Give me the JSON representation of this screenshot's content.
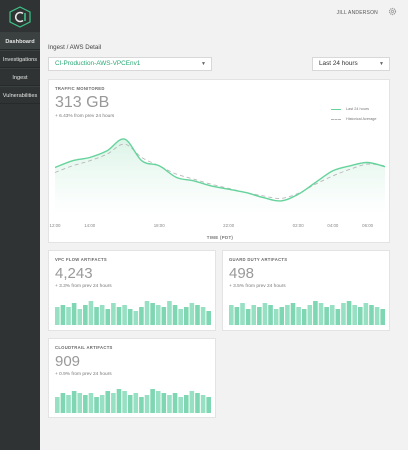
{
  "colors": {
    "accent": "#2aa876",
    "series": "#66d39c",
    "fill": "#d9f3e6",
    "bars": "#8fdcbd",
    "sidebar": "#2f3333"
  },
  "icons": {
    "logo": "ci-logo-icon",
    "settings": "gear-icon",
    "dropdown": "chevron-down-icon"
  },
  "sidebar": {
    "items": [
      {
        "label": "Dashboard",
        "active": true
      },
      {
        "label": "Investigations",
        "active": false
      },
      {
        "label": "Ingest",
        "active": false
      },
      {
        "label": "Vulnerabilities",
        "active": false
      }
    ]
  },
  "header": {
    "user": "JILL ANDERSON"
  },
  "breadcrumb": "Ingest / AWS Detail",
  "filters": {
    "account": "CI-Production-AWS-VPCEnv1",
    "range": "Last 24 hours"
  },
  "traffic": {
    "title": "TRAFFIC MONITORED",
    "value": "313 GB",
    "delta": "+ 6.43% from prev 24 hours",
    "legend": {
      "current": "Last 24 hours",
      "historical": "Historical Average"
    },
    "x_label": "TIME (PDT)",
    "chart_data": {
      "type": "area",
      "x": [
        "12:00",
        "13:00",
        "14:00",
        "15:00",
        "16:00",
        "17:00",
        "18:00",
        "19:00",
        "20:00",
        "21:00",
        "22:00",
        "23:00",
        "00:00",
        "01:00",
        "02:00",
        "03:00",
        "04:00",
        "05:00",
        "06:00",
        "07:00"
      ],
      "x_ticks": [
        "12:00",
        "14:00",
        "18:00",
        "22:00",
        "02:00",
        "04:00",
        "06:00"
      ],
      "series": [
        {
          "name": "Last 24 hours",
          "values": [
            58,
            66,
            70,
            78,
            92,
            66,
            60,
            46,
            42,
            36,
            32,
            28,
            22,
            18,
            26,
            40,
            54,
            60,
            64,
            59
          ]
        },
        {
          "name": "Historical Average",
          "values": [
            52,
            60,
            66,
            74,
            86,
            70,
            60,
            50,
            44,
            38,
            33,
            28,
            24,
            21,
            27,
            38,
            48,
            56,
            62,
            60
          ]
        }
      ],
      "ylim": [
        0,
        110
      ]
    }
  },
  "vpc": {
    "title": "VPC FLOW ARTIFACTS",
    "value": "4,243",
    "delta": "+ 3.3% from prev 24 hours",
    "chart_data": {
      "type": "bar",
      "values": [
        9,
        10,
        9,
        11,
        8,
        10,
        12,
        9,
        10,
        8,
        11,
        9,
        10,
        8,
        7,
        9,
        12,
        11,
        10,
        9,
        12,
        10,
        8,
        9,
        11,
        10,
        9,
        7
      ]
    }
  },
  "guard": {
    "title": "GUARD DUTY ARTIFACTS",
    "value": "498",
    "delta": "+ 3.5% from prev 24 hours",
    "chart_data": {
      "type": "bar",
      "values": [
        10,
        9,
        11,
        8,
        10,
        9,
        11,
        10,
        8,
        9,
        10,
        11,
        9,
        8,
        10,
        12,
        11,
        9,
        10,
        8,
        11,
        12,
        10,
        9,
        11,
        10,
        9,
        8
      ]
    }
  },
  "cloud": {
    "title": "CLOUDTRAIL ARTIFACTS",
    "value": "909",
    "delta": "+ 0.9% from prev 24 hours",
    "chart_data": {
      "type": "bar",
      "values": [
        8,
        10,
        9,
        11,
        10,
        9,
        10,
        8,
        9,
        11,
        10,
        12,
        11,
        9,
        10,
        8,
        9,
        12,
        11,
        10,
        9,
        10,
        8,
        9,
        11,
        10,
        9,
        8
      ]
    }
  }
}
